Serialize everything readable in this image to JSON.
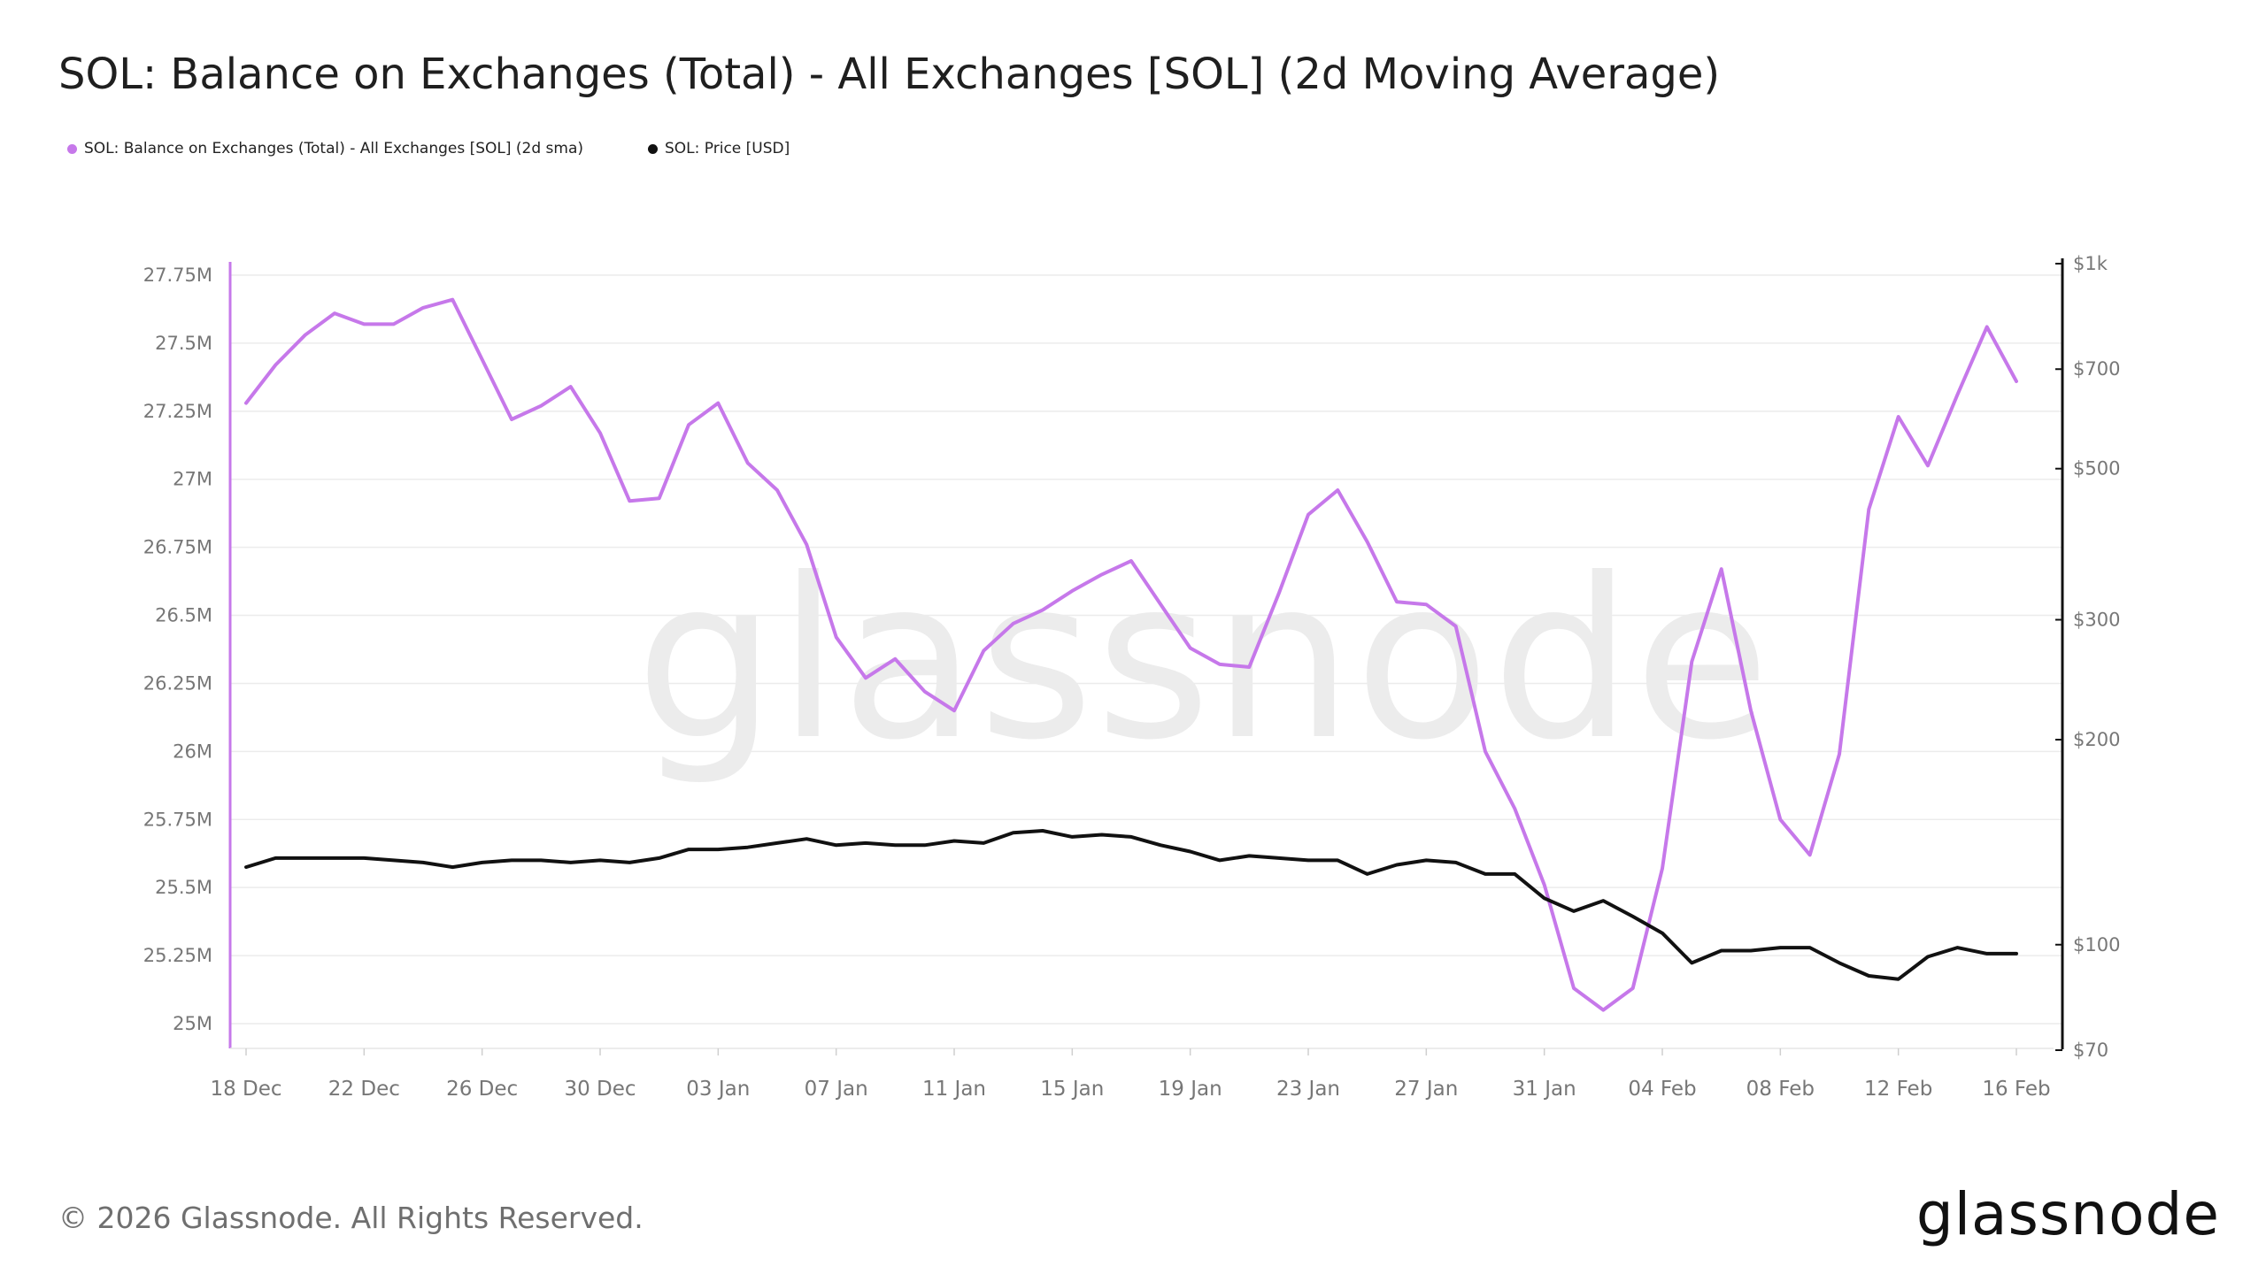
{
  "title": "SOL: Balance on Exchanges (Total) - All Exchanges [SOL] (2d Moving Average)",
  "legend": [
    {
      "label": "SOL: Balance on Exchanges (Total) - All Exchanges [SOL] (2d sma)",
      "color": "#c678ea"
    },
    {
      "label": "SOL: Price [USD]",
      "color": "#111111"
    }
  ],
  "watermark": "glassnode",
  "footer": "© 2026 Glassnode. All Rights Reserved.",
  "brand": "glassnode",
  "chart_data": {
    "type": "line",
    "grid": true,
    "legend_position": "top-left",
    "x_ticks": [
      "18 Dec",
      "22 Dec",
      "26 Dec",
      "30 Dec",
      "03 Jan",
      "07 Jan",
      "11 Jan",
      "15 Jan",
      "19 Jan",
      "23 Jan",
      "27 Jan",
      "31 Jan",
      "04 Feb",
      "08 Feb",
      "12 Feb",
      "16 Feb"
    ],
    "x": [
      "18 Dec",
      "19 Dec",
      "20 Dec",
      "21 Dec",
      "22 Dec",
      "23 Dec",
      "24 Dec",
      "25 Dec",
      "26 Dec",
      "27 Dec",
      "28 Dec",
      "29 Dec",
      "30 Dec",
      "31 Dec",
      "01 Jan",
      "02 Jan",
      "03 Jan",
      "04 Jan",
      "05 Jan",
      "06 Jan",
      "07 Jan",
      "08 Jan",
      "09 Jan",
      "10 Jan",
      "11 Jan",
      "12 Jan",
      "13 Jan",
      "14 Jan",
      "15 Jan",
      "16 Jan",
      "17 Jan",
      "18 Jan",
      "19 Jan",
      "20 Jan",
      "21 Jan",
      "22 Jan",
      "23 Jan",
      "24 Jan",
      "25 Jan",
      "26 Jan",
      "27 Jan",
      "28 Jan",
      "29 Jan",
      "30 Jan",
      "31 Jan",
      "01 Feb",
      "02 Feb",
      "03 Feb",
      "04 Feb",
      "05 Feb",
      "06 Feb",
      "07 Feb",
      "08 Feb",
      "09 Feb",
      "10 Feb",
      "11 Feb",
      "12 Feb",
      "13 Feb",
      "14 Feb",
      "15 Feb",
      "16 Feb"
    ],
    "y_left": {
      "ticks": [
        "25M",
        "25.25M",
        "25.5M",
        "25.75M",
        "26M",
        "26.25M",
        "26.5M",
        "26.75M",
        "27M",
        "27.25M",
        "27.5M",
        "27.75M"
      ],
      "min": 25000000,
      "max": 27750000
    },
    "y_right": {
      "scale": "log",
      "ticks": [
        {
          "label": "$70",
          "value": 70
        },
        {
          "label": "$100",
          "value": 100
        },
        {
          "label": "$200",
          "value": 200
        },
        {
          "label": "$300",
          "value": 300
        },
        {
          "label": "$500",
          "value": 500
        },
        {
          "label": "$700",
          "value": 700
        },
        {
          "label": "$1k",
          "value": 1000
        }
      ],
      "min": 70,
      "max": 1000
    },
    "series": [
      {
        "name": "SOL: Balance on Exchanges (Total) - All Exchanges [SOL] (2d sma)",
        "axis": "left",
        "color": "#c678ea",
        "values": [
          27280000,
          27420000,
          27530000,
          27610000,
          27570000,
          27570000,
          27630000,
          27660000,
          27440000,
          27220000,
          27270000,
          27340000,
          27170000,
          26920000,
          26930000,
          27200000,
          27280000,
          27060000,
          26960000,
          26760000,
          26420000,
          26270000,
          26340000,
          26220000,
          26150000,
          26370000,
          26470000,
          26520000,
          26590000,
          26650000,
          26700000,
          26540000,
          26380000,
          26320000,
          26310000,
          26580000,
          26870000,
          26960000,
          26770000,
          26550000,
          26540000,
          26460000,
          26000000,
          25790000,
          25510000,
          25130000,
          25050000,
          25130000,
          25570000,
          26330000,
          26670000,
          26150000,
          25750000,
          25620000,
          25990000,
          26890000,
          27230000,
          27050000,
          27310000,
          27560000,
          27360000
        ]
      },
      {
        "name": "SOL: Price [USD]",
        "axis": "right",
        "color": "#111111",
        "values": [
          130,
          134,
          134,
          134,
          134,
          133,
          132,
          130,
          132,
          133,
          133,
          132,
          133,
          132,
          134,
          138,
          138,
          139,
          141,
          143,
          140,
          141,
          140,
          140,
          142,
          141,
          146,
          147,
          144,
          145,
          144,
          140,
          137,
          133,
          135,
          134,
          133,
          133,
          127,
          131,
          133,
          132,
          127,
          127,
          117,
          112,
          116,
          110,
          104,
          94,
          98,
          98,
          99,
          99,
          94,
          90,
          89,
          96,
          99,
          97,
          97
        ]
      }
    ]
  }
}
